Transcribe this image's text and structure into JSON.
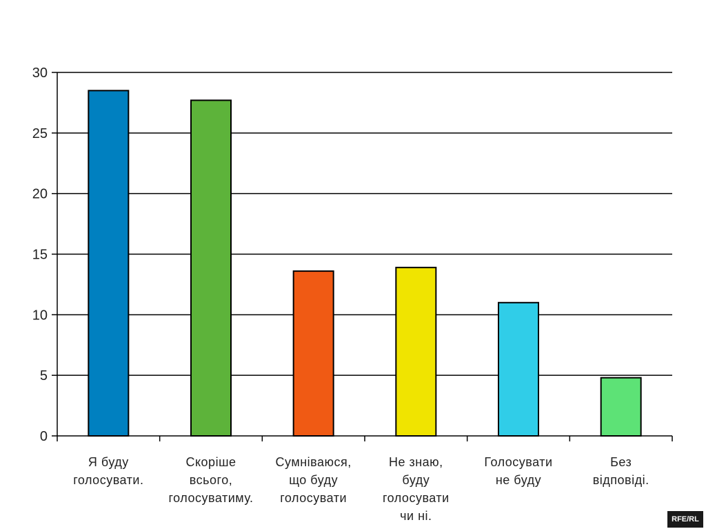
{
  "chart_data": {
    "type": "bar",
    "title": "",
    "xlabel": "",
    "ylabel": "",
    "ylim": [
      0,
      30
    ],
    "yticks": [
      0,
      5,
      10,
      15,
      20,
      25,
      30
    ],
    "grid": true,
    "categories": [
      [
        "Я буду",
        "голосувати."
      ],
      [
        "Скоріше",
        "всього,",
        "голосуватиму."
      ],
      [
        "Сумніваюся,",
        "що буду",
        "голосувати"
      ],
      [
        "Не знаю,",
        "буду",
        "голосувати",
        "чи ні."
      ],
      [
        "Голосувати",
        "не буду"
      ],
      [
        "Без",
        "відповіді."
      ]
    ],
    "values": [
      28.5,
      27.7,
      13.6,
      13.9,
      11.0,
      4.8
    ],
    "colors": [
      "#0080C0",
      "#5DB33A",
      "#F05A14",
      "#F0E400",
      "#30CDE8",
      "#5DE276"
    ]
  },
  "watermark": "RFE/RL"
}
